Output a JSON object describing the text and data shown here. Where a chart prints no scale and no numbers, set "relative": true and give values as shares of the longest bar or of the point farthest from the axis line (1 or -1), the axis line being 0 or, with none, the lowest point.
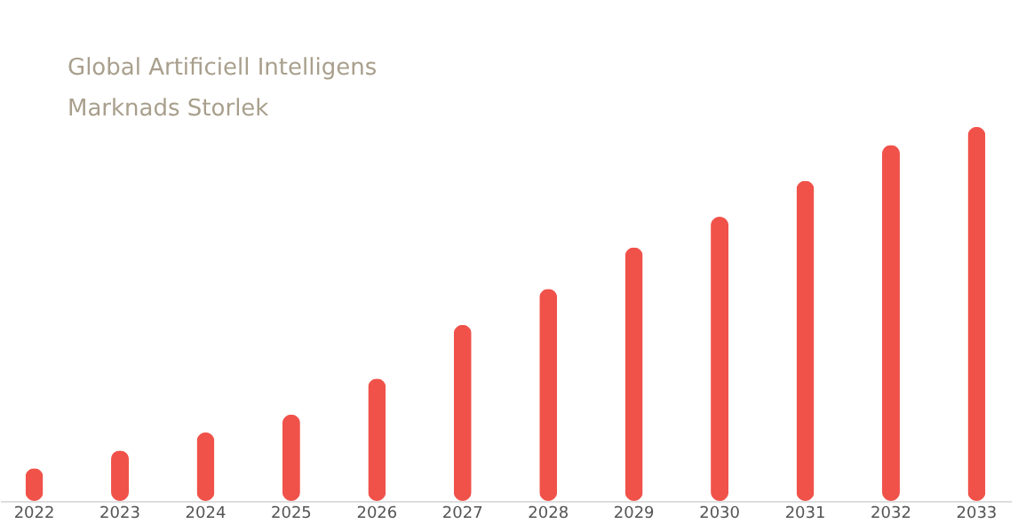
{
  "chart_data": {
    "type": "bar",
    "title": "Global Artificiell Intelligens Marknads Storlek",
    "relative": true,
    "categories": [
      "2022",
      "2023",
      "2024",
      "2025",
      "2026",
      "2027",
      "2028",
      "2029",
      "2030",
      "2031",
      "2032",
      "2033"
    ],
    "values": [
      0.087,
      0.135,
      0.183,
      0.231,
      0.327,
      0.471,
      0.567,
      0.678,
      0.76,
      0.856,
      0.952,
      1
    ],
    "color": "#f0524a",
    "grid": false
  }
}
